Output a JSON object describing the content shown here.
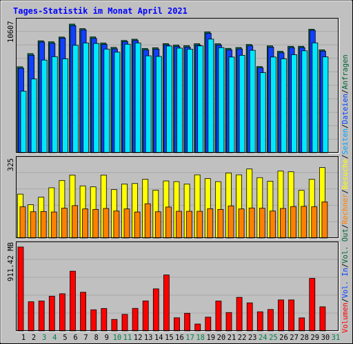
{
  "title": "Tages-Statistik im Monat April 2021",
  "right_legend": [
    {
      "text": "Anfragen",
      "color": "#006633"
    },
    {
      "text": "Dateien",
      "color": "#0040ff"
    },
    {
      "text": "Seiten",
      "color": "#00a0ff"
    },
    {
      "text": "Besuche",
      "color": "#ffff00"
    },
    {
      "text": "Rechner",
      "color": "#ff8000"
    },
    {
      "text": "Vol. Out",
      "color": "#006633"
    },
    {
      "text": "Vol. In",
      "color": "#0040ff"
    },
    {
      "text": "Volumen",
      "color": "#ff0000"
    }
  ],
  "legend_sep": "/",
  "colors": {
    "background": "#c0c0c0",
    "panel": "#c0c0c0",
    "title": "#0000ff",
    "anfragen": "#00805a",
    "dateien": "#1040ff",
    "seiten": "#00e8ff",
    "besuche": "#ffff00",
    "rechner": "#ff8000",
    "volumen": "#ff0000",
    "weekend_label": "#00804a",
    "weekday_label": "#000000"
  },
  "chart_data": [
    {
      "type": "bar",
      "panel": "hits",
      "ylabel": "10607",
      "ylim": [
        0,
        10607
      ],
      "categories": [
        "1",
        "2",
        "3",
        "4",
        "5",
        "6",
        "7",
        "8",
        "9",
        "10",
        "11",
        "12",
        "13",
        "14",
        "15",
        "16",
        "17",
        "18",
        "19",
        "20",
        "21",
        "22",
        "23",
        "24",
        "25",
        "26",
        "27",
        "28",
        "29",
        "30"
      ],
      "series": [
        {
          "name": "Anfragen",
          "values": [
            7050,
            8130,
            9180,
            9100,
            9490,
            10550,
            10180,
            9500,
            9000,
            8640,
            9210,
            9310,
            8550,
            8610,
            8950,
            8830,
            8780,
            8940,
            9910,
            8940,
            8560,
            8630,
            8880,
            7070,
            8770,
            8320,
            8730,
            8730,
            10130,
            8440
          ]
        },
        {
          "name": "Dateien",
          "values": [
            6930,
            8000,
            9080,
            8980,
            9400,
            10420,
            10080,
            9380,
            8880,
            8520,
            9110,
            9200,
            8430,
            8490,
            8850,
            8710,
            8660,
            8830,
            9790,
            8830,
            8440,
            8510,
            8770,
            6960,
            8660,
            8200,
            8620,
            8620,
            10030,
            8330
          ]
        },
        {
          "name": "Seiten",
          "values": [
            5050,
            6050,
            7600,
            7880,
            7700,
            8810,
            9000,
            8960,
            8500,
            8250,
            8900,
            9000,
            7950,
            7900,
            8750,
            8580,
            8490,
            8760,
            9320,
            8620,
            7850,
            7990,
            8400,
            6570,
            7850,
            7700,
            8040,
            8360,
            9010,
            7860
          ]
        }
      ]
    },
    {
      "type": "bar",
      "panel": "visits",
      "ylabel": "325",
      "ylim": [
        0,
        325
      ],
      "categories": [
        "1",
        "2",
        "3",
        "4",
        "5",
        "6",
        "7",
        "8",
        "9",
        "10",
        "11",
        "12",
        "13",
        "14",
        "15",
        "16",
        "17",
        "18",
        "19",
        "20",
        "21",
        "22",
        "23",
        "24",
        "25",
        "26",
        "27",
        "28",
        "29",
        "30"
      ],
      "series": [
        {
          "name": "Besuche",
          "values": [
            187,
            142,
            174,
            214,
            245,
            268,
            222,
            218,
            268,
            206,
            230,
            232,
            250,
            204,
            243,
            240,
            230,
            269,
            253,
            240,
            277,
            269,
            294,
            257,
            242,
            285,
            282,
            203,
            250,
            300
          ]
        },
        {
          "name": "Rechner",
          "values": [
            133,
            112,
            113,
            111,
            127,
            138,
            124,
            122,
            126,
            115,
            124,
            111,
            146,
            112,
            132,
            114,
            114,
            114,
            125,
            122,
            137,
            124,
            128,
            127,
            115,
            126,
            134,
            135,
            133,
            154
          ]
        }
      ]
    },
    {
      "type": "bar",
      "panel": "volume",
      "ylabel": "911.42 MB",
      "ylim": [
        0,
        911.42
      ],
      "categories": [
        "1",
        "2",
        "3",
        "4",
        "5",
        "6",
        "7",
        "8",
        "9",
        "10",
        "11",
        "12",
        "13",
        "14",
        "15",
        "16",
        "17",
        "18",
        "19",
        "20",
        "21",
        "22",
        "23",
        "24",
        "25",
        "26",
        "27",
        "28",
        "29",
        "30"
      ],
      "series": [
        {
          "name": "Volumen",
          "values": [
            911.42,
            317,
            325,
            377,
            404,
            649,
            420,
            230,
            244,
            125,
            180,
            245,
            326,
            457,
            608,
            143,
            192,
            75,
            150,
            325,
            200,
            365,
            305,
            208,
            233,
            337,
            337,
            142,
            571,
            262
          ]
        }
      ]
    }
  ],
  "x_labels": [
    {
      "text": "1",
      "weekend": false
    },
    {
      "text": "2",
      "weekend": false
    },
    {
      "text": "3",
      "weekend": true
    },
    {
      "text": "4",
      "weekend": true
    },
    {
      "text": "5",
      "weekend": false
    },
    {
      "text": "6",
      "weekend": false
    },
    {
      "text": "7",
      "weekend": false
    },
    {
      "text": "8",
      "weekend": false
    },
    {
      "text": "9",
      "weekend": false
    },
    {
      "text": "10",
      "weekend": true
    },
    {
      "text": "11",
      "weekend": true
    },
    {
      "text": "12",
      "weekend": false
    },
    {
      "text": "13",
      "weekend": false
    },
    {
      "text": "14",
      "weekend": false
    },
    {
      "text": "15",
      "weekend": false
    },
    {
      "text": "16",
      "weekend": false
    },
    {
      "text": "17",
      "weekend": true
    },
    {
      "text": "18",
      "weekend": true
    },
    {
      "text": "19",
      "weekend": false
    },
    {
      "text": "20",
      "weekend": false
    },
    {
      "text": "21",
      "weekend": false
    },
    {
      "text": "22",
      "weekend": false
    },
    {
      "text": "23",
      "weekend": false
    },
    {
      "text": "24",
      "weekend": true
    },
    {
      "text": "25",
      "weekend": true
    },
    {
      "text": "26",
      "weekend": false
    },
    {
      "text": "27",
      "weekend": false
    },
    {
      "text": "28",
      "weekend": false
    },
    {
      "text": "29",
      "weekend": false
    },
    {
      "text": "30",
      "weekend": false
    },
    {
      "text": "31",
      "weekend": true
    }
  ]
}
